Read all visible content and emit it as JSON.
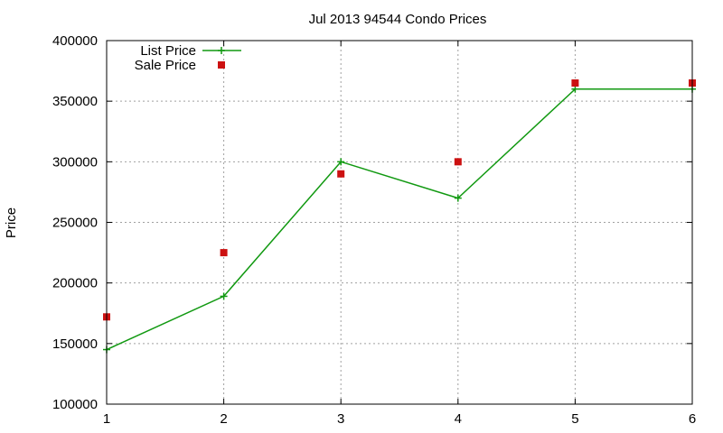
{
  "chart_data": {
    "type": "line",
    "title": "Jul 2013 94544 Condo Prices",
    "xlabel": "",
    "ylabel": "Price",
    "xlim": [
      1,
      6
    ],
    "ylim": [
      100000,
      400000
    ],
    "x_ticks": [
      "1",
      "2",
      "3",
      "4",
      "5",
      "6"
    ],
    "y_ticks": [
      "100000",
      "150000",
      "200000",
      "250000",
      "300000",
      "350000",
      "400000"
    ],
    "grid": true,
    "legend_position": "top-left",
    "x": [
      1,
      2,
      3,
      4,
      5,
      6
    ],
    "series": [
      {
        "name": "List Price",
        "style": "line-plus",
        "color": "#119911",
        "values": [
          145000,
          189000,
          300000,
          270000,
          360000,
          360000
        ]
      },
      {
        "name": "Sale Price",
        "style": "square-points",
        "color": "#cc1111",
        "values": [
          172000,
          225000,
          290000,
          300000,
          365000,
          365000
        ]
      }
    ]
  }
}
